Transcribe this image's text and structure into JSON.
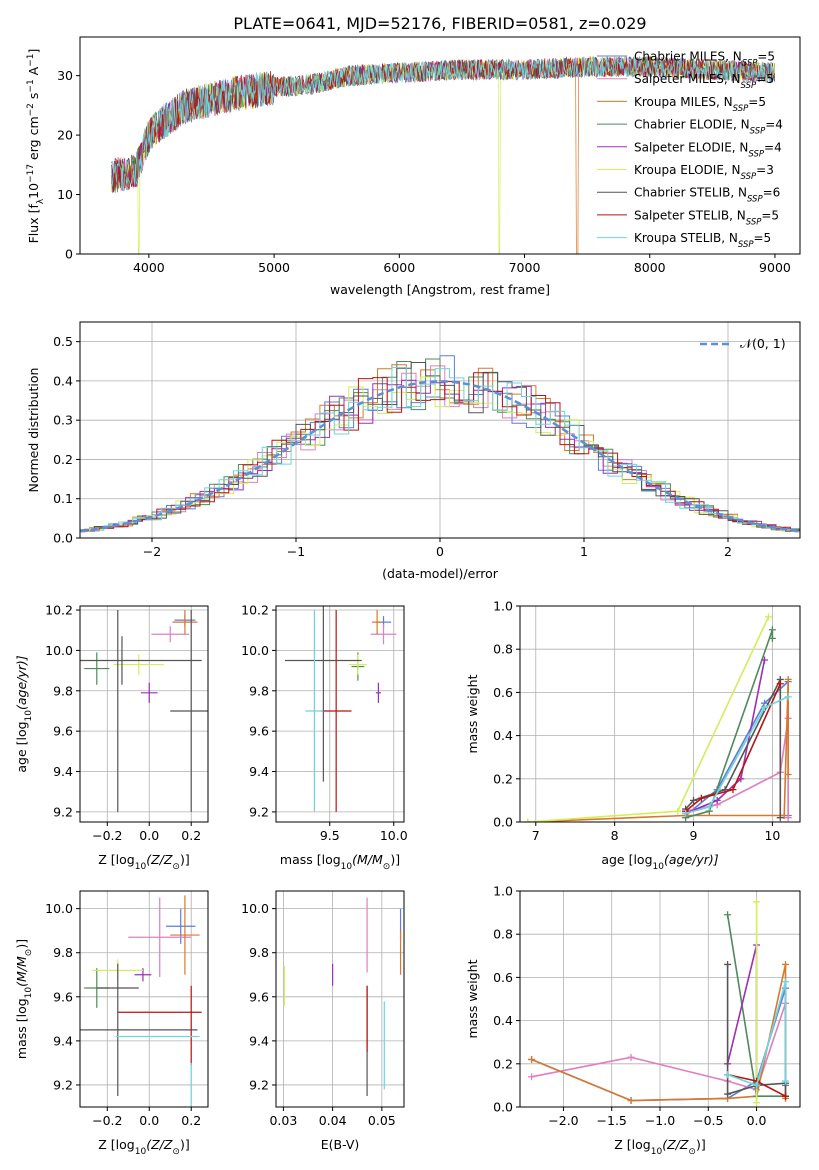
{
  "title": "PLATE=0641, MJD=52176, FIBERID=0581, z=0.029",
  "models": [
    {
      "label": "Chabrier MILES",
      "nssp": "5",
      "color": "#5b7fd6"
    },
    {
      "label": "Salpeter MILES",
      "nssp": "5",
      "color": "#e07fbf"
    },
    {
      "label": "Kroupa MILES",
      "nssp": "5",
      "color": "#d9782d"
    },
    {
      "label": "Chabrier ELODIE",
      "nssp": "4",
      "color": "#4f8a5b"
    },
    {
      "label": "Salpeter ELODIE",
      "nssp": "4",
      "color": "#9b30b8"
    },
    {
      "label": "Kroupa ELODIE",
      "nssp": "3",
      "color": "#d2ef5a"
    },
    {
      "label": "Chabrier STELIB",
      "nssp": "6",
      "color": "#555555"
    },
    {
      "label": "Salpeter STELIB",
      "nssp": "5",
      "color": "#b81414"
    },
    {
      "label": "Kroupa STELIB",
      "nssp": "5",
      "color": "#6fd4de"
    }
  ],
  "nssp_prefix": "N",
  "nssp_sub": "SSP",
  "chart_data": [
    {
      "id": "spectrum",
      "type": "line",
      "xlabel": "wavelength [Angstrom, rest frame]",
      "ylabel": "Flux [f",
      "ylabel_sub": "λ",
      "ylabel_rest": "10",
      "ylabel_sup1": "−17",
      "ylabel_tail": " erg cm",
      "ylabel_sup2": "−2",
      "ylabel_tail2": " s",
      "ylabel_sup3": "−1",
      "ylabel_tail3": " A",
      "ylabel_sup4": "−1",
      "ylabel_end": "]",
      "xlim": [
        3450,
        9200
      ],
      "ylim": [
        0,
        36.5
      ],
      "xticks": [
        "4000",
        "5000",
        "6000",
        "7000",
        "8000",
        "9000"
      ],
      "yticks": [
        "0",
        "10",
        "20",
        "30"
      ],
      "continuum": [
        [
          3700,
          13
        ],
        [
          3900,
          14
        ],
        [
          4000,
          20
        ],
        [
          4100,
          22
        ],
        [
          4300,
          25
        ],
        [
          4500,
          26
        ],
        [
          4700,
          27
        ],
        [
          5000,
          28
        ],
        [
          5300,
          28.5
        ],
        [
          5600,
          30
        ],
        [
          6000,
          30.5
        ],
        [
          6500,
          31
        ],
        [
          7000,
          31
        ],
        [
          7500,
          31.5
        ],
        [
          8000,
          31.5
        ],
        [
          8500,
          31
        ],
        [
          9000,
          30.5
        ]
      ],
      "drops": [
        [
          6800,
          0
        ],
        [
          7420,
          0
        ],
        [
          3920,
          0
        ]
      ]
    },
    {
      "id": "residuals",
      "type": "bar",
      "xlabel": "(data-model)/error",
      "ylabel": "Normed distribution",
      "xlim": [
        -2.5,
        2.5
      ],
      "ylim": [
        0,
        0.55
      ],
      "xticks": [
        "−2",
        "−1",
        "0",
        "1",
        "2"
      ],
      "yticks": [
        "0.0",
        "0.1",
        "0.2",
        "0.3",
        "0.4",
        "0.5"
      ],
      "legend": "𝒩(0, 1)",
      "normal": {
        "mean": 0,
        "sigma": 1
      },
      "bin_width": 0.1
    },
    {
      "id": "age-vs-Z",
      "type": "scatter",
      "xlabel": "Z [log",
      "xlabel_sub": "10",
      "xlabel_tail": "(Z/Z",
      "xlabel_sub2": "⊙",
      "xlabel_end": ")]",
      "ylabel": "age  [log",
      "ylabel_sub": "10",
      "ylabel_tail": "(age/yr)]",
      "xlim": [
        -0.33,
        0.28
      ],
      "ylim": [
        9.15,
        10.22
      ],
      "xticks": [
        "−0.2",
        "0.0",
        "0.2"
      ],
      "xtick_vals": [
        -0.2,
        0.0,
        0.2
      ],
      "yticks": [
        "9.2",
        "9.4",
        "9.6",
        "9.8",
        "10.0",
        "10.2"
      ],
      "ytick_vals": [
        9.2,
        9.4,
        9.6,
        9.8,
        10.0,
        10.2
      ],
      "points": [
        {
          "m": 0,
          "x": 0.17,
          "y": 10.15,
          "xe": 0.05,
          "ye": 0.03
        },
        {
          "m": 1,
          "x": 0.1,
          "y": 10.08,
          "xe": 0.09,
          "ye": 0.04
        },
        {
          "m": 2,
          "x": 0.17,
          "y": 10.14,
          "xe": 0.06,
          "ye": 0.06
        },
        {
          "m": 3,
          "x": -0.25,
          "y": 9.91,
          "xe": 0.06,
          "ye": 0.08
        },
        {
          "m": 4,
          "x": 0.0,
          "y": 9.79,
          "xe": 0.04,
          "ye": 0.05
        },
        {
          "m": 5,
          "x": -0.05,
          "y": 9.93,
          "xe": 0.12,
          "ye": 0.05
        },
        {
          "m": 6,
          "x": -0.13,
          "y": 9.95,
          "xe": 0.38,
          "ye": 0.12
        },
        {
          "m": 6,
          "x": 0.2,
          "y": 9.7,
          "xe": 0.1,
          "ye": 0.5
        },
        {
          "m": 6,
          "x": -0.15,
          "y": 9.7,
          "xe": 0.0,
          "ye": 0.5
        }
      ]
    },
    {
      "id": "age-vs-mass",
      "type": "scatter",
      "xlabel": "mass [log",
      "xlabel_sub": "10",
      "xlabel_tail": "(M/M",
      "xlabel_sub2": "⊙",
      "xlabel_end": ")]",
      "xlim": [
        9.08,
        10.08
      ],
      "ylim": [
        9.15,
        10.22
      ],
      "xticks": [
        "9.5",
        "10.0"
      ],
      "xtick_vals": [
        9.5,
        10.0
      ],
      "yticks": [
        "9.2",
        "9.4",
        "9.6",
        "9.8",
        "10.0",
        "10.2"
      ],
      "ytick_vals": [
        9.2,
        9.4,
        9.6,
        9.8,
        10.0,
        10.2
      ],
      "points": [
        {
          "m": 0,
          "x": 9.92,
          "y": 10.14,
          "xe": 0.06,
          "ye": 0.03
        },
        {
          "m": 1,
          "x": 9.92,
          "y": 10.08,
          "xe": 0.1,
          "ye": 0.05
        },
        {
          "m": 2,
          "x": 9.87,
          "y": 10.14,
          "xe": 0.04,
          "ye": 0.06
        },
        {
          "m": 3,
          "x": 9.72,
          "y": 9.92,
          "xe": 0.05,
          "ye": 0.07
        },
        {
          "m": 4,
          "x": 9.88,
          "y": 9.79,
          "xe": 0.02,
          "ye": 0.05
        },
        {
          "m": 5,
          "x": 9.72,
          "y": 9.93,
          "xe": 0.07,
          "ye": 0.05
        },
        {
          "m": 6,
          "x": 9.45,
          "y": 9.95,
          "xe": 0.3,
          "ye": 0.6
        },
        {
          "m": 7,
          "x": 9.55,
          "y": 9.7,
          "xe": 0.12,
          "ye": 0.5
        },
        {
          "m": 8,
          "x": 9.38,
          "y": 9.7,
          "xe": 0.07,
          "ye": 0.5
        }
      ]
    },
    {
      "id": "weight-vs-age",
      "type": "line",
      "xlabel": "age  [log",
      "xlabel_sub": "10",
      "xlabel_tail": "(age/yr)]",
      "ylabel": "mass weight",
      "xlim": [
        6.8,
        10.35
      ],
      "ylim": [
        0,
        1.0
      ],
      "xticks": [
        "7",
        "8",
        "9",
        "10"
      ],
      "xtick_vals": [
        7,
        8,
        9,
        10
      ],
      "yticks": [
        "0.0",
        "0.2",
        "0.4",
        "0.6",
        "0.8",
        "1.0"
      ],
      "ytick_vals": [
        0,
        0.2,
        0.4,
        0.6,
        0.8,
        1.0
      ],
      "series": [
        {
          "m": 0,
          "x": [
            8.9,
            9.3,
            9.9,
            10.2,
            10.2
          ],
          "y": [
            0.03,
            0.15,
            0.55,
            0.65,
            0.03
          ]
        },
        {
          "m": 1,
          "x": [
            8.9,
            9.3,
            10.1,
            10.2,
            10.2
          ],
          "y": [
            0.05,
            0.08,
            0.23,
            0.48,
            0.02
          ]
        },
        {
          "m": 2,
          "x": [
            6.9,
            8.9,
            10.15,
            10.2,
            10.2
          ],
          "y": [
            0.0,
            0.03,
            0.03,
            0.66,
            0.22
          ]
        },
        {
          "m": 3,
          "x": [
            8.9,
            9.2,
            10.0,
            10.0
          ],
          "y": [
            0.02,
            0.05,
            0.89,
            0.85
          ]
        },
        {
          "m": 4,
          "x": [
            8.9,
            9.3,
            9.6,
            9.9
          ],
          "y": [
            0.04,
            0.1,
            0.2,
            0.75
          ]
        },
        {
          "m": 5,
          "x": [
            6.9,
            8.8,
            9.95
          ],
          "y": [
            0.0,
            0.05,
            0.95
          ]
        },
        {
          "m": 6,
          "x": [
            8.9,
            9.0,
            9.4,
            10.1,
            10.1
          ],
          "y": [
            0.06,
            0.1,
            0.15,
            0.66,
            0.02
          ]
        },
        {
          "m": 7,
          "x": [
            8.9,
            9.1,
            9.5,
            10.1
          ],
          "y": [
            0.05,
            0.11,
            0.15,
            0.64
          ]
        },
        {
          "m": 8,
          "x": [
            8.9,
            9.2,
            9.9,
            10.2
          ],
          "y": [
            0.04,
            0.07,
            0.53,
            0.58
          ]
        }
      ]
    },
    {
      "id": "mass-vs-Z",
      "type": "scatter",
      "xlabel": "Z [log",
      "xlabel_sub": "10",
      "xlabel_tail": "(Z/Z",
      "xlabel_sub2": "⊙",
      "xlabel_end": ")]",
      "ylabel": "mass [log",
      "ylabel_sub": "10",
      "ylabel_tail": "(M/M",
      "ylabel_sub2": "⊙",
      "ylabel_end": ")]",
      "xlim": [
        -0.33,
        0.28
      ],
      "ylim": [
        9.1,
        10.08
      ],
      "xticks": [
        "−0.2",
        "0.0",
        "0.2"
      ],
      "xtick_vals": [
        -0.2,
        0.0,
        0.2
      ],
      "yticks": [
        "9.2",
        "9.4",
        "9.6",
        "9.8",
        "10.0"
      ],
      "ytick_vals": [
        9.2,
        9.4,
        9.6,
        9.8,
        10.0
      ],
      "points": [
        {
          "m": 0,
          "x": 0.15,
          "y": 9.92,
          "xe": 0.07,
          "ye": 0.08
        },
        {
          "m": 1,
          "x": 0.05,
          "y": 9.87,
          "xe": 0.15,
          "ye": 0.18
        },
        {
          "m": 2,
          "x": 0.17,
          "y": 9.88,
          "xe": 0.07,
          "ye": 0.18
        },
        {
          "m": 3,
          "x": -0.25,
          "y": 9.64,
          "xe": 0.06,
          "ye": 0.09
        },
        {
          "m": 4,
          "x": -0.03,
          "y": 9.7,
          "xe": 0.04,
          "ye": 0.03
        },
        {
          "m": 5,
          "x": -0.15,
          "y": 9.72,
          "xe": 0.12,
          "ye": 0.05
        },
        {
          "m": 6,
          "x": -0.15,
          "y": 9.45,
          "xe": 0.38,
          "ye": 0.3
        },
        {
          "m": 6,
          "x": -0.15,
          "y": 9.64,
          "xe": 0.1,
          "ye": 0.0
        },
        {
          "m": 7,
          "x": 0.05,
          "y": 9.53,
          "xe": 0.2,
          "ye": 0.0
        },
        {
          "m": 7,
          "x": 0.2,
          "y": 9.47,
          "xe": 0.0,
          "ye": 0.18
        },
        {
          "m": 8,
          "x": 0.04,
          "y": 9.42,
          "xe": 0.2,
          "ye": 0.0
        },
        {
          "m": 8,
          "x": 0.2,
          "y": 9.2,
          "xe": 0.0,
          "ye": 0.1
        }
      ]
    },
    {
      "id": "mass-vs-EBV",
      "type": "scatter",
      "xlabel": "E(B-V)",
      "xlim": [
        0.0285,
        0.0545
      ],
      "ylim": [
        9.1,
        10.08
      ],
      "xticks": [
        "0.03",
        "0.04",
        "0.05"
      ],
      "xtick_vals": [
        0.03,
        0.04,
        0.05
      ],
      "yticks": [
        "9.2",
        "9.4",
        "9.6",
        "9.8",
        "10.0"
      ],
      "ytick_vals": [
        9.2,
        9.4,
        9.6,
        9.8,
        10.0
      ],
      "points": [
        {
          "m": 0,
          "x": 0.0538,
          "y": 9.93,
          "xe": 0,
          "ye": 0.07
        },
        {
          "m": 1,
          "x": 0.047,
          "y": 9.88,
          "xe": 0,
          "ye": 0.17
        },
        {
          "m": 2,
          "x": 0.0538,
          "y": 9.8,
          "xe": 0,
          "ye": 0.1
        },
        {
          "m": 4,
          "x": 0.04,
          "y": 9.7,
          "xe": 0,
          "ye": 0.05
        },
        {
          "m": 5,
          "x": 0.0302,
          "y": 9.65,
          "xe": 0,
          "ye": 0.09
        },
        {
          "m": 6,
          "x": 0.047,
          "y": 9.4,
          "xe": 0,
          "ye": 0.25
        },
        {
          "m": 7,
          "x": 0.047,
          "y": 9.5,
          "xe": 0,
          "ye": 0.15
        },
        {
          "m": 8,
          "x": 0.0505,
          "y": 9.38,
          "xe": 0,
          "ye": 0.2
        }
      ]
    },
    {
      "id": "weight-vs-Z",
      "type": "line",
      "xlabel": "Z [log",
      "xlabel_sub": "10",
      "xlabel_tail": "(Z/Z",
      "xlabel_sub2": "⊙",
      "xlabel_end": ")]",
      "ylabel": "mass weight",
      "xlim": [
        -2.45,
        0.45
      ],
      "ylim": [
        0,
        1.0
      ],
      "xticks": [
        "−2.0",
        "−1.5",
        "−1.0",
        "−0.5",
        "0.0"
      ],
      "xtick_vals": [
        -2.0,
        -1.5,
        -1.0,
        -0.5,
        0.0
      ],
      "yticks": [
        "0.0",
        "0.2",
        "0.4",
        "0.6",
        "0.8",
        "1.0"
      ],
      "ytick_vals": [
        0,
        0.2,
        0.4,
        0.6,
        0.8,
        1.0
      ],
      "series": [
        {
          "m": 0,
          "x": [
            -2.33,
            -1.3,
            -0.3,
            0.0,
            0.3,
            0.3
          ],
          "y": [
            0.22,
            0.03,
            0.04,
            0.12,
            0.55,
            0.1
          ]
        },
        {
          "m": 1,
          "x": [
            -2.33,
            -1.3,
            -0.3,
            0.0,
            0.3
          ],
          "y": [
            0.14,
            0.23,
            0.12,
            0.08,
            0.48
          ]
        },
        {
          "m": 2,
          "x": [
            -2.33,
            -1.3,
            -0.3,
            0.0,
            0.3,
            0.3
          ],
          "y": [
            0.22,
            0.03,
            0.04,
            0.05,
            0.66,
            0.04
          ]
        },
        {
          "m": 3,
          "x": [
            -0.3,
            0.0,
            0.3
          ],
          "y": [
            0.89,
            0.05,
            0.05
          ]
        },
        {
          "m": 4,
          "x": [
            -0.3,
            0.0,
            0.0
          ],
          "y": [
            0.2,
            0.75,
            0.1
          ]
        },
        {
          "m": 5,
          "x": [
            0.0,
            0.0
          ],
          "y": [
            0.95,
            0.02
          ]
        },
        {
          "m": 6,
          "x": [
            -0.3,
            -0.3,
            0.0,
            0.3,
            0.3
          ],
          "y": [
            0.66,
            0.06,
            0.1,
            0.11,
            0.05
          ]
        },
        {
          "m": 7,
          "x": [
            -0.3,
            0.0,
            0.3
          ],
          "y": [
            0.15,
            0.12,
            0.05
          ]
        },
        {
          "m": 8,
          "x": [
            -0.3,
            0.0,
            0.3,
            0.3
          ],
          "y": [
            0.15,
            0.1,
            0.58,
            0.12
          ]
        }
      ]
    }
  ]
}
